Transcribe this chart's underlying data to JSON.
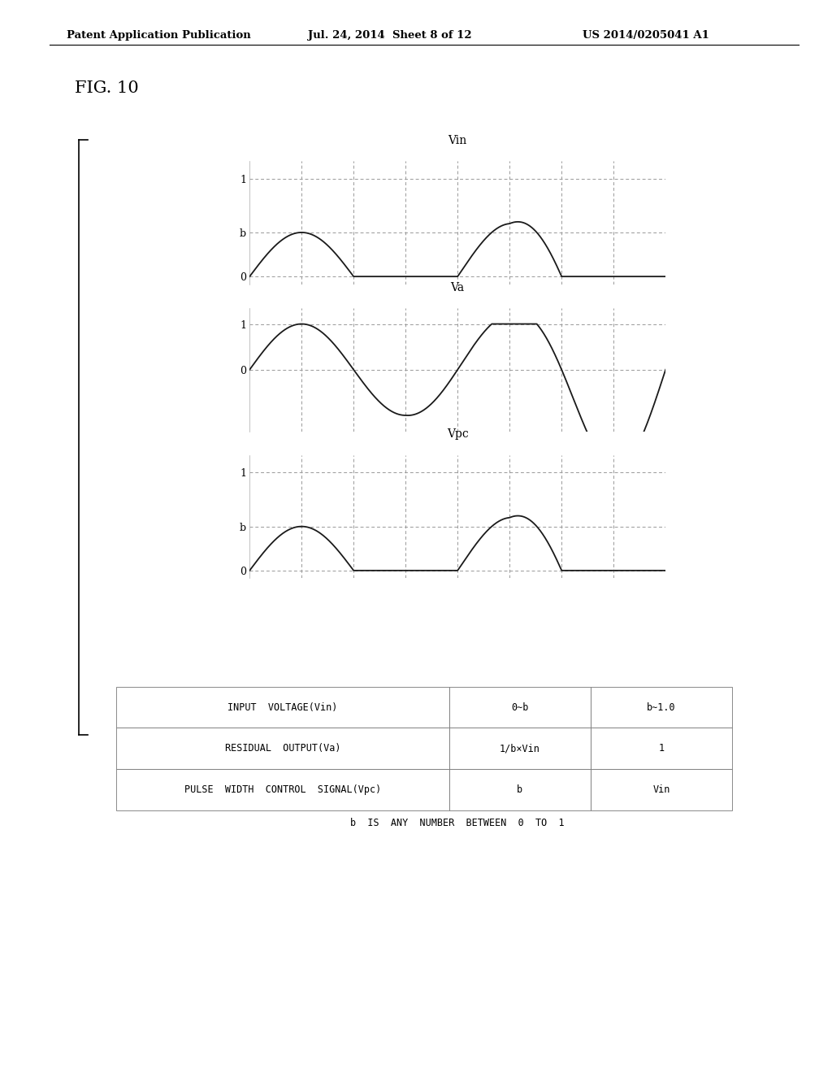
{
  "header_left": "Patent Application Publication",
  "header_mid": "Jul. 24, 2014  Sheet 8 of 12",
  "header_right": "US 2014/0205041 A1",
  "fig_label": "FIG. 10",
  "b_value": 0.45,
  "plot_title_vin": "Vin",
  "plot_title_va": "Va",
  "plot_title_vpc": "Vpc",
  "table_rows": [
    [
      "INPUT  VOLTAGE(Vin)",
      "0∼b",
      "b∼1.0"
    ],
    [
      "RESIDUAL  OUTPUT(Va)",
      "1/b×Vin",
      "1"
    ],
    [
      "PULSE  WIDTH  CONTROL  SIGNAL(Vpc)",
      "b",
      "Vin"
    ]
  ],
  "table_note": "b  IS  ANY  NUMBER  BETWEEN  0  TO  1",
  "bg_color": "#ffffff",
  "line_color": "#1a1a1a",
  "grid_color": "#999999"
}
